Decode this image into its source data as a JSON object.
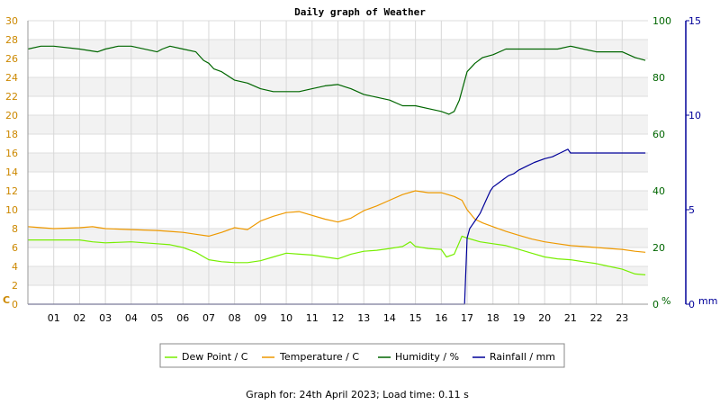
{
  "chart_data": {
    "type": "line",
    "title": "Daily graph of Weather",
    "footer": "Graph for: 24th April 2023; Load time: 0.11 s",
    "x_ticks": [
      "01",
      "02",
      "03",
      "04",
      "05",
      "06",
      "07",
      "08",
      "09",
      "10",
      "11",
      "12",
      "13",
      "14",
      "15",
      "16",
      "17",
      "18",
      "19",
      "20",
      "21",
      "22",
      "23"
    ],
    "xlim": [
      0,
      24
    ],
    "axes": {
      "left": {
        "unit": "C",
        "ylim": [
          0,
          30
        ],
        "ticks": [
          "0",
          "2",
          "4",
          "6",
          "8",
          "10",
          "12",
          "14",
          "16",
          "18",
          "20",
          "22",
          "24",
          "26",
          "28",
          "30"
        ],
        "color": "#cc8800"
      },
      "humidity": {
        "unit": "%",
        "ylim": [
          0,
          100
        ],
        "ticks": [
          "0",
          "20",
          "40",
          "60",
          "80",
          "100"
        ],
        "color": "#006600"
      },
      "rain": {
        "unit": "mm",
        "ylim": [
          0,
          15
        ],
        "ticks": [
          "0",
          "5",
          "10",
          "15"
        ],
        "color": "#000099"
      }
    },
    "grid": true,
    "legend_position": "bottom",
    "series": [
      {
        "name": "Dew Point / C",
        "axis": "left",
        "color": "#77ee00",
        "x": [
          0,
          1,
          2,
          2.5,
          3,
          4,
          5,
          5.5,
          6,
          6.5,
          7,
          7.5,
          8,
          8.5,
          9,
          9.5,
          10,
          10.5,
          11,
          11.5,
          12,
          12.5,
          13,
          13.5,
          14,
          14.5,
          14.8,
          15,
          15.5,
          16,
          16.2,
          16.5,
          16.8,
          17,
          17.5,
          18,
          18.5,
          19,
          19.5,
          20,
          20.5,
          21,
          21.5,
          22,
          22.5,
          23,
          23.5,
          23.9
        ],
        "values": [
          6.8,
          6.8,
          6.8,
          6.6,
          6.5,
          6.6,
          6.4,
          6.3,
          6.0,
          5.5,
          4.7,
          4.5,
          4.4,
          4.4,
          4.6,
          5.0,
          5.4,
          5.3,
          5.2,
          5.0,
          4.8,
          5.3,
          5.6,
          5.7,
          5.9,
          6.1,
          6.6,
          6.1,
          5.9,
          5.8,
          5.0,
          5.3,
          7.2,
          7.0,
          6.6,
          6.4,
          6.2,
          5.8,
          5.4,
          5.0,
          4.8,
          4.7,
          4.5,
          4.3,
          4.0,
          3.7,
          3.2,
          3.1
        ]
      },
      {
        "name": "Temperature / C",
        "axis": "left",
        "color": "#ee9900",
        "x": [
          0,
          1,
          2,
          2.5,
          3,
          4,
          5,
          5.5,
          6,
          6.5,
          7,
          7.5,
          8,
          8.5,
          9,
          9.5,
          10,
          10.5,
          11,
          11.5,
          12,
          12.5,
          13,
          13.5,
          14,
          14.5,
          15,
          15.5,
          16,
          16.5,
          16.8,
          17,
          17.3,
          17.6,
          18,
          18.5,
          19,
          19.5,
          20,
          20.5,
          21,
          21.5,
          22,
          22.5,
          23,
          23.5,
          23.9
        ],
        "values": [
          8.2,
          8.0,
          8.1,
          8.2,
          8.0,
          7.9,
          7.8,
          7.7,
          7.6,
          7.4,
          7.2,
          7.6,
          8.1,
          7.9,
          8.8,
          9.3,
          9.7,
          9.8,
          9.4,
          9.0,
          8.7,
          9.1,
          9.9,
          10.4,
          11.0,
          11.6,
          12.0,
          11.8,
          11.8,
          11.4,
          11.0,
          10.0,
          9.0,
          8.6,
          8.2,
          7.7,
          7.3,
          6.9,
          6.6,
          6.4,
          6.2,
          6.1,
          6.0,
          5.9,
          5.8,
          5.6,
          5.5
        ]
      },
      {
        "name": "Humidity / %",
        "axis": "humidity",
        "color": "#006600",
        "x": [
          0,
          0.5,
          1,
          2,
          2.7,
          3,
          3.5,
          4,
          5,
          5.2,
          5.5,
          6,
          6.5,
          6.8,
          7,
          7.2,
          7.5,
          8,
          8.5,
          9,
          9.5,
          10,
          10.5,
          11,
          11.5,
          12,
          12.5,
          13,
          13.5,
          14,
          14.5,
          15,
          15.5,
          16,
          16.3,
          16.5,
          16.7,
          17,
          17.3,
          17.6,
          18,
          18.5,
          19,
          19.5,
          20,
          20.5,
          21,
          21.5,
          22,
          22.5,
          23,
          23.5,
          23.9
        ],
        "values": [
          90,
          91,
          91,
          90,
          89,
          90,
          91,
          91,
          89,
          90,
          91,
          90,
          89,
          86,
          85,
          83,
          82,
          79,
          78,
          76,
          75,
          75,
          75,
          76,
          77,
          77.5,
          76,
          74,
          73,
          72,
          70,
          70,
          69,
          68,
          67,
          68,
          72,
          82,
          85,
          87,
          88,
          90,
          90,
          90,
          90,
          90,
          91,
          90,
          89,
          89,
          89,
          87,
          86
        ]
      },
      {
        "name": "Rainfall / mm",
        "axis": "rain",
        "color": "#000099",
        "x": [
          0,
          16.9,
          17.0,
          17.1,
          17.2,
          17.3,
          17.4,
          17.5,
          17.6,
          17.7,
          17.8,
          17.9,
          18.0,
          18.2,
          18.4,
          18.6,
          18.8,
          19.0,
          19.3,
          19.6,
          20.0,
          20.3,
          20.6,
          20.9,
          21.0,
          22,
          23,
          23.9
        ],
        "values": [
          0,
          0,
          3.5,
          4.0,
          4.2,
          4.4,
          4.6,
          4.8,
          5.1,
          5.4,
          5.7,
          6.0,
          6.2,
          6.4,
          6.6,
          6.8,
          6.9,
          7.1,
          7.3,
          7.5,
          7.7,
          7.8,
          8.0,
          8.2,
          8.0,
          8.0,
          8.0,
          8.0
        ]
      }
    ]
  }
}
